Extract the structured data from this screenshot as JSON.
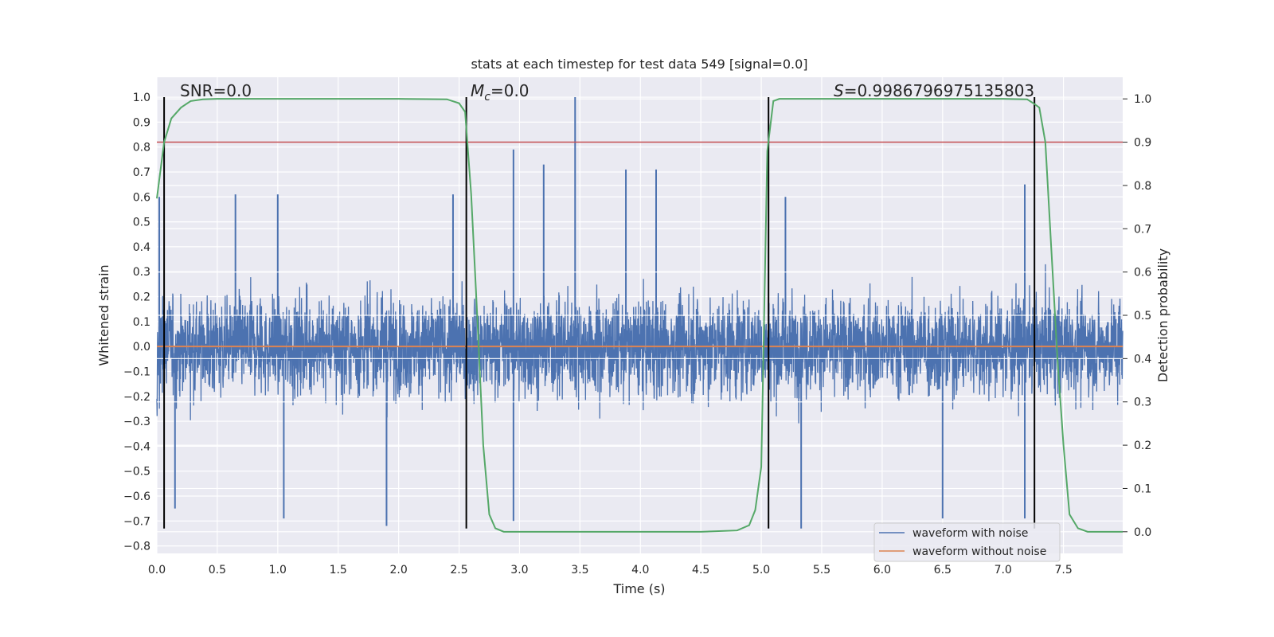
{
  "chart_data": {
    "type": "line",
    "title": "stats at each timestep for test data 549 [signal=0.0]",
    "xlabel": "Time (s)",
    "ylabel": "Whitened strain",
    "y2label": "Detection probability",
    "xlim": [
      0.0,
      7.99
    ],
    "ylim": [
      -0.83,
      1.08
    ],
    "y2lim": [
      -0.05,
      1.05
    ],
    "xticks": [
      "0.0",
      "0.5",
      "1.0",
      "1.5",
      "2.0",
      "2.5",
      "3.0",
      "3.5",
      "4.0",
      "4.5",
      "5.0",
      "5.5",
      "6.0",
      "6.5",
      "7.0",
      "7.5"
    ],
    "yticks": [
      "1.0",
      "0.9",
      "0.8",
      "0.7",
      "0.6",
      "0.5",
      "0.4",
      "0.3",
      "0.2",
      "0.1",
      "0.0",
      "−0.1",
      "−0.2",
      "−0.3",
      "−0.4",
      "−0.5",
      "−0.6",
      "−0.7",
      "−0.8"
    ],
    "y2ticks": [
      "1.0",
      "0.9",
      "0.8",
      "0.7",
      "0.6",
      "0.5",
      "0.4",
      "0.3",
      "0.2",
      "0.1",
      "0.0"
    ],
    "grid": true,
    "legend_position": "bottom-right",
    "annotations": {
      "snr": "SNR=0.0",
      "mc_symbol": "M",
      "mc_sub": "c",
      "mc_value": "=0.0",
      "s_symbol": "S",
      "s_value": "=0.9986796975135803"
    },
    "threshold_y2": 0.9,
    "vertical_lines_x": [
      0.06,
      2.56,
      5.06,
      7.26
    ],
    "colors": {
      "background": "#eaeaf2",
      "noise": "#4c72b0",
      "clean": "#dd8452",
      "probability": "#55a868",
      "threshold": "#c44e52",
      "vlines": "#000000"
    },
    "series": [
      {
        "name": "waveform with noise",
        "kind": "noisy-strain",
        "envelope": {
          "typical_abs": 0.3,
          "min": -0.73,
          "max": 1.0
        },
        "peaks": [
          {
            "x": 0.02,
            "y": 0.6
          },
          {
            "x": 0.65,
            "y": 0.61
          },
          {
            "x": 1.0,
            "y": 0.61
          },
          {
            "x": 2.45,
            "y": 0.61
          },
          {
            "x": 2.95,
            "y": 0.79
          },
          {
            "x": 3.2,
            "y": 0.73
          },
          {
            "x": 3.46,
            "y": 1.0
          },
          {
            "x": 3.88,
            "y": 0.71
          },
          {
            "x": 4.13,
            "y": 0.71
          },
          {
            "x": 5.2,
            "y": 0.6
          },
          {
            "x": 7.18,
            "y": 0.65
          },
          {
            "x": 1.9,
            "y": -0.72
          },
          {
            "x": 0.15,
            "y": -0.65
          },
          {
            "x": 1.05,
            "y": -0.69
          },
          {
            "x": 2.95,
            "y": -0.7
          },
          {
            "x": 5.33,
            "y": -0.73
          },
          {
            "x": 6.5,
            "y": -0.69
          },
          {
            "x": 7.18,
            "y": -0.69
          }
        ]
      },
      {
        "name": "waveform without noise",
        "kind": "constant",
        "y": 0.0
      },
      {
        "kind": "detection-probability",
        "axis": "right",
        "x": [
          0.0,
          0.06,
          0.12,
          0.2,
          0.28,
          0.38,
          0.5,
          1.0,
          2.0,
          2.4,
          2.5,
          2.55,
          2.6,
          2.65,
          2.7,
          2.75,
          2.8,
          2.87,
          3.0,
          4.5,
          4.8,
          4.9,
          4.95,
          5.0,
          5.05,
          5.1,
          5.15,
          5.25,
          6.0,
          7.0,
          7.2,
          7.25,
          7.3,
          7.35,
          7.4,
          7.45,
          7.5,
          7.55,
          7.62,
          7.7,
          7.8,
          7.99
        ],
        "y": [
          0.77,
          0.9,
          0.955,
          0.98,
          0.995,
          0.999,
          1.0,
          1.0,
          1.0,
          0.999,
          0.99,
          0.97,
          0.78,
          0.5,
          0.2,
          0.04,
          0.008,
          0.0,
          0.0,
          0.0,
          0.003,
          0.015,
          0.05,
          0.15,
          0.88,
          0.995,
          1.0,
          1.0,
          1.0,
          1.0,
          0.999,
          0.99,
          0.98,
          0.9,
          0.65,
          0.4,
          0.2,
          0.04,
          0.008,
          0.0,
          0.0,
          0.0
        ]
      }
    ]
  },
  "legend": {
    "items": [
      {
        "label": "waveform with noise",
        "color": "#4c72b0"
      },
      {
        "label": "waveform without noise",
        "color": "#dd8452"
      }
    ]
  }
}
